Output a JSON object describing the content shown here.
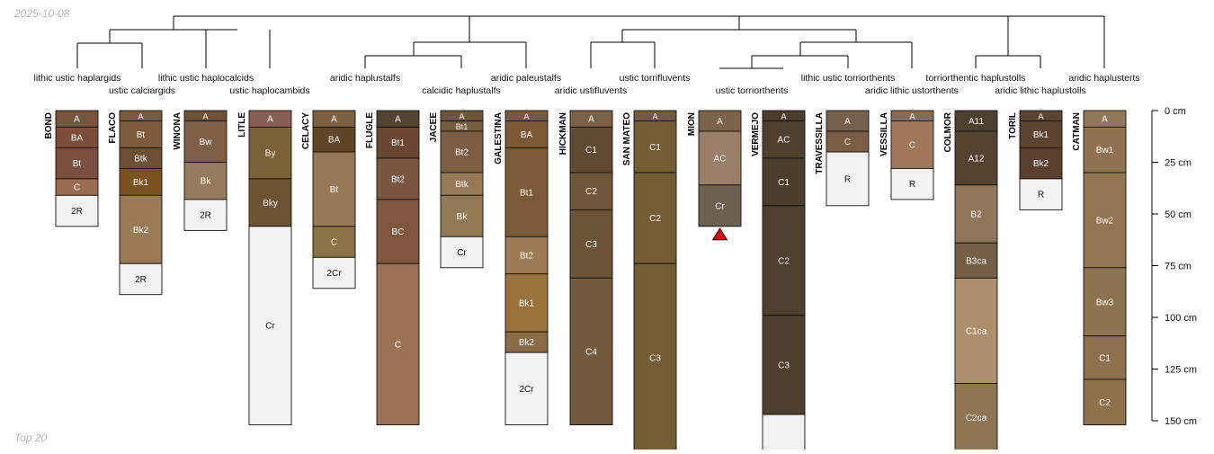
{
  "header": {
    "date": "2025-10-08"
  },
  "footer": {
    "note": "Top 20"
  },
  "depth_axis": {
    "unit": "cm",
    "ticks": [
      0,
      25,
      50,
      75,
      100,
      125,
      150
    ]
  },
  "taxa": [
    "lithic ustic haplargids",
    "ustic calciargids",
    "lithic ustic haplocalcids",
    "ustic haplocambids",
    "aridic haplustalfs",
    "calcidic haplustalfs",
    "aridic paleustalfs",
    "aridic ustifluvents",
    "ustic torrifluvents",
    "ustic torriorthents",
    "lithic ustic torriorthents",
    "aridic lithic ustorthents",
    "torriorthentic haplustolls",
    "aridic lithic haplustolls",
    "aridic haplusterts"
  ],
  "chart_data": {
    "type": "soil-profile-sketches",
    "depth_unit": "cm",
    "depth_range": [
      0,
      150
    ],
    "profiles": [
      {
        "name": "BOND",
        "horizons": [
          {
            "name": "A",
            "top": 0,
            "bottom": 8,
            "color": "#7a5438"
          },
          {
            "name": "BA",
            "top": 8,
            "bottom": 18,
            "color": "#7a4e39"
          },
          {
            "name": "Bt",
            "top": 18,
            "bottom": 33,
            "color": "#7b4f3f"
          },
          {
            "name": "C",
            "top": 33,
            "bottom": 41,
            "color": "#9b6c50"
          },
          {
            "name": "2R",
            "top": 41,
            "bottom": 56,
            "color": "#f2f2f2"
          }
        ]
      },
      {
        "name": "FLACO",
        "horizons": [
          {
            "name": "A",
            "top": 0,
            "bottom": 5,
            "color": "#7b5a3c"
          },
          {
            "name": "Bt",
            "top": 5,
            "bottom": 18,
            "color": "#7c5a3a"
          },
          {
            "name": "Btk",
            "top": 18,
            "bottom": 28,
            "color": "#6d5033"
          },
          {
            "name": "Bk1",
            "top": 28,
            "bottom": 41,
            "color": "#7b5220"
          },
          {
            "name": "Bk2",
            "top": 41,
            "bottom": 74,
            "color": "#9a7a55"
          },
          {
            "name": "2R",
            "top": 74,
            "bottom": 89,
            "color": "#f2f2f2"
          }
        ]
      },
      {
        "name": "WINONA",
        "horizons": [
          {
            "name": "A",
            "top": 0,
            "bottom": 5,
            "color": "#6c5038"
          },
          {
            "name": "Bw",
            "top": 5,
            "bottom": 25,
            "color": "#7f6046"
          },
          {
            "name": "Bk",
            "top": 25,
            "bottom": 43,
            "color": "#957a5c"
          },
          {
            "name": "2R",
            "top": 43,
            "bottom": 58,
            "color": "#f2f2f2"
          }
        ]
      },
      {
        "name": "LITLE",
        "horizons": [
          {
            "name": "A",
            "top": 0,
            "bottom": 8,
            "color": "#8a5e55"
          },
          {
            "name": "By",
            "top": 8,
            "bottom": 33,
            "color": "#7c6038"
          },
          {
            "name": "Bky",
            "top": 33,
            "bottom": 56,
            "color": "#6d5332"
          },
          {
            "name": "Cr",
            "top": 56,
            "bottom": 152,
            "color": "#f2f2f2"
          }
        ]
      },
      {
        "name": "CELACY",
        "horizons": [
          {
            "name": "A",
            "top": 0,
            "bottom": 8,
            "color": "#7e6040"
          },
          {
            "name": "BA",
            "top": 8,
            "bottom": 20,
            "color": "#5e4526"
          },
          {
            "name": "Bt",
            "top": 20,
            "bottom": 56,
            "color": "#977856"
          },
          {
            "name": "C",
            "top": 56,
            "bottom": 71,
            "color": "#8c7246"
          },
          {
            "name": "2Cr",
            "top": 71,
            "bottom": 86,
            "color": "#f2f2f2"
          }
        ]
      },
      {
        "name": "FLUGLE",
        "horizons": [
          {
            "name": "A",
            "top": 0,
            "bottom": 8,
            "color": "#55432f"
          },
          {
            "name": "Bt1",
            "top": 8,
            "bottom": 23,
            "color": "#6a4730"
          },
          {
            "name": "Bt2",
            "top": 23,
            "bottom": 43,
            "color": "#7a5540"
          },
          {
            "name": "BC",
            "top": 43,
            "bottom": 74,
            "color": "#7e573d"
          },
          {
            "name": "C",
            "top": 74,
            "bottom": 152,
            "color": "#9a7354"
          }
        ]
      },
      {
        "name": "JACEE",
        "horizons": [
          {
            "name": "A",
            "top": 0,
            "bottom": 5,
            "color": "#6e5438"
          },
          {
            "name": "Bt1",
            "top": 5,
            "bottom": 10,
            "color": "#765b3c"
          },
          {
            "name": "Bt2",
            "top": 10,
            "bottom": 30,
            "color": "#7d5e42"
          },
          {
            "name": "Btk",
            "top": 30,
            "bottom": 41,
            "color": "#977857"
          },
          {
            "name": "Bk",
            "top": 41,
            "bottom": 61,
            "color": "#917a54"
          },
          {
            "name": "Cr",
            "top": 61,
            "bottom": 76,
            "color": "#f2f2f2"
          }
        ]
      },
      {
        "name": "GALESTINA",
        "horizons": [
          {
            "name": "A",
            "top": 0,
            "bottom": 5,
            "color": "#7b5a3a"
          },
          {
            "name": "BA",
            "top": 5,
            "bottom": 18,
            "color": "#7c5934"
          },
          {
            "name": "Bt1",
            "top": 18,
            "bottom": 61,
            "color": "#7b5a37"
          },
          {
            "name": "Bt2",
            "top": 61,
            "bottom": 79,
            "color": "#9b7a55"
          },
          {
            "name": "Bk1",
            "top": 79,
            "bottom": 107,
            "color": "#9a733c"
          },
          {
            "name": "Bk2",
            "top": 107,
            "bottom": 117,
            "color": "#8b6a46"
          },
          {
            "name": "2Cr",
            "top": 117,
            "bottom": 152,
            "color": "#f2f2f2"
          }
        ]
      },
      {
        "name": "HICKMAN",
        "horizons": [
          {
            "name": "A",
            "top": 0,
            "bottom": 8,
            "color": "#7e6144"
          },
          {
            "name": "C1",
            "top": 8,
            "bottom": 30,
            "color": "#614a32"
          },
          {
            "name": "C2",
            "top": 30,
            "bottom": 48,
            "color": "#705639"
          },
          {
            "name": "C3",
            "top": 48,
            "bottom": 81,
            "color": "#6b5337"
          },
          {
            "name": "C4",
            "top": 81,
            "bottom": 152,
            "color": "#735a3c"
          }
        ]
      },
      {
        "name": "SAN MATEO",
        "horizons": [
          {
            "name": "A",
            "top": 0,
            "bottom": 5,
            "color": "#745c35"
          },
          {
            "name": "C1",
            "top": 5,
            "bottom": 30,
            "color": "#745c35"
          },
          {
            "name": "C2",
            "top": 30,
            "bottom": 74,
            "color": "#745c35"
          },
          {
            "name": "C3",
            "top": 74,
            "bottom": 165,
            "color": "#745c35"
          }
        ]
      },
      {
        "name": "MION",
        "marker": "bottom-triangle",
        "horizons": [
          {
            "name": "A",
            "top": 0,
            "bottom": 10,
            "color": "#7c644b"
          },
          {
            "name": "AC",
            "top": 10,
            "bottom": 36,
            "color": "#9a7f68"
          },
          {
            "name": "Cr",
            "top": 36,
            "bottom": 56,
            "color": "#6e604f"
          }
        ]
      },
      {
        "name": "VERMEJO",
        "horizons": [
          {
            "name": "A",
            "top": 0,
            "bottom": 5,
            "color": "#4c3c2c"
          },
          {
            "name": "AC",
            "top": 5,
            "bottom": 23,
            "color": "#4f3f2e"
          },
          {
            "name": "C1",
            "top": 23,
            "bottom": 46,
            "color": "#4d3d2c"
          },
          {
            "name": "C2",
            "top": 46,
            "bottom": 99,
            "color": "#4e3f2e"
          },
          {
            "name": "C3",
            "top": 99,
            "bottom": 147,
            "color": "#4d3e2d"
          },
          {
            "name": "",
            "top": 147,
            "bottom": 165,
            "color": "#f2f2f2"
          }
        ]
      },
      {
        "name": "TRAVESSILLA",
        "horizons": [
          {
            "name": "A",
            "top": 0,
            "bottom": 10,
            "color": "#75604b"
          },
          {
            "name": "C",
            "top": 10,
            "bottom": 20,
            "color": "#7b5d45"
          },
          {
            "name": "R",
            "top": 20,
            "bottom": 46,
            "color": "#f2f2f2"
          }
        ]
      },
      {
        "name": "VESSILLA",
        "horizons": [
          {
            "name": "A",
            "top": 0,
            "bottom": 5,
            "color": "#8c6a4b"
          },
          {
            "name": "C",
            "top": 5,
            "bottom": 28,
            "color": "#a07859"
          },
          {
            "name": "R",
            "top": 28,
            "bottom": 43,
            "color": "#f2f2f2"
          }
        ]
      },
      {
        "name": "COLMOR",
        "horizons": [
          {
            "name": "A11",
            "top": 0,
            "bottom": 10,
            "color": "#4f3f2e"
          },
          {
            "name": "A12",
            "top": 10,
            "bottom": 36,
            "color": "#55432f"
          },
          {
            "name": "B2",
            "top": 36,
            "bottom": 64,
            "color": "#907658"
          },
          {
            "name": "B3ca",
            "top": 64,
            "bottom": 81,
            "color": "#765d45"
          },
          {
            "name": "C1ca",
            "top": 81,
            "bottom": 132,
            "color": "#ad906b"
          },
          {
            "name": "C2ca",
            "top": 132,
            "bottom": 165,
            "color": "#8e7655"
          }
        ]
      },
      {
        "name": "TORIL",
        "horizons": [
          {
            "name": "A",
            "top": 0,
            "bottom": 5,
            "color": "#5b4533"
          },
          {
            "name": "Bk1",
            "top": 5,
            "bottom": 18,
            "color": "#5c4431"
          },
          {
            "name": "Bk2",
            "top": 18,
            "bottom": 33,
            "color": "#5a3f2f"
          },
          {
            "name": "R",
            "top": 33,
            "bottom": 48,
            "color": "#f2f2f2"
          }
        ]
      },
      {
        "name": "CATMAN",
        "horizons": [
          {
            "name": "A",
            "top": 0,
            "bottom": 8,
            "color": "#927655"
          },
          {
            "name": "Bw1",
            "top": 8,
            "bottom": 30,
            "color": "#907250"
          },
          {
            "name": "Bw2",
            "top": 30,
            "bottom": 76,
            "color": "#937551"
          },
          {
            "name": "Bw3",
            "top": 76,
            "bottom": 109,
            "color": "#8e734f"
          },
          {
            "name": "C1",
            "top": 109,
            "bottom": 130,
            "color": "#8f704d"
          },
          {
            "name": "C2",
            "top": 130,
            "bottom": 152,
            "color": "#8f714c"
          }
        ]
      }
    ]
  }
}
